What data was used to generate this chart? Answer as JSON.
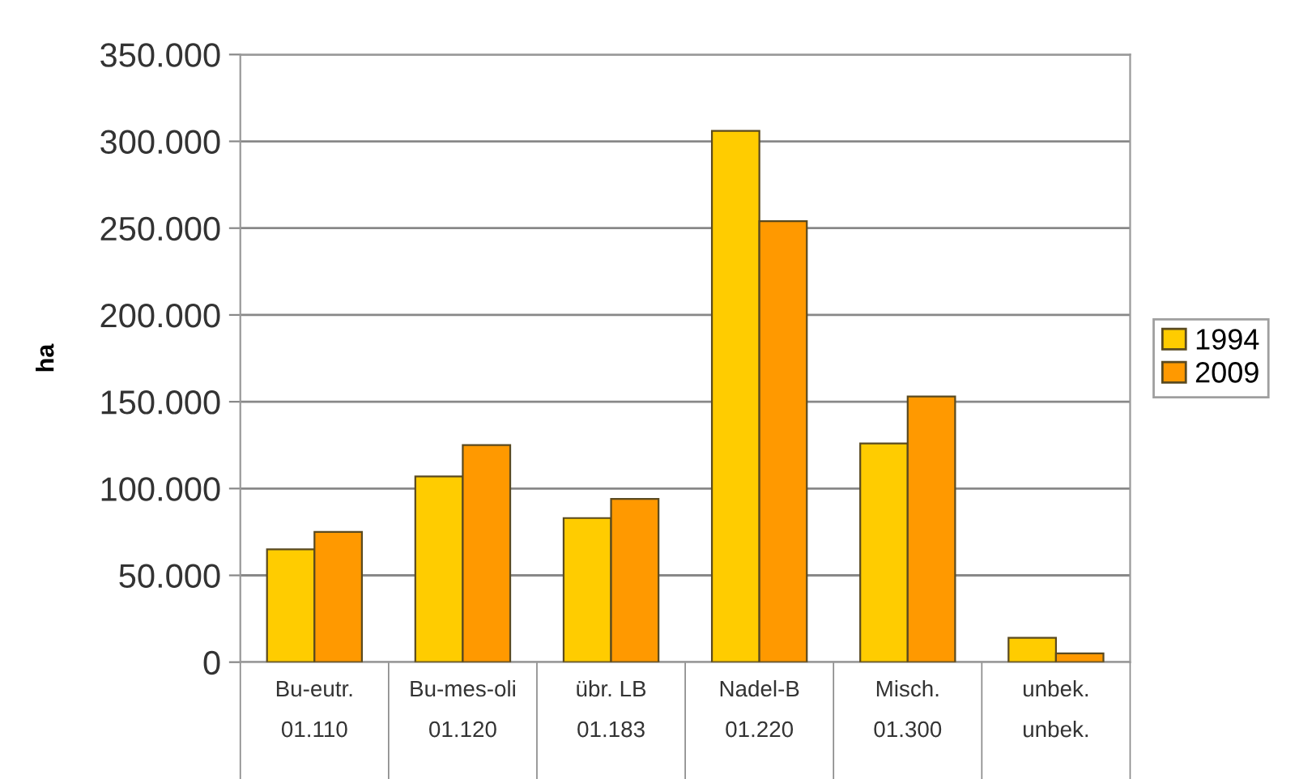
{
  "chart_data": {
    "type": "bar",
    "ylabel": "ha",
    "categories": [
      "Bu-eutr.\n01.110",
      "Bu-mes-oli\n01.120",
      "übr. LB\n01.183",
      "Nadel-B\n01.220",
      "Misch.\n01.300",
      "unbek.\nunbek."
    ],
    "series": [
      {
        "name": "1994",
        "color": "#ffcc00",
        "values": [
          65000,
          107000,
          83000,
          306000,
          126000,
          14000
        ]
      },
      {
        "name": "2009",
        "color": "#ff9900",
        "values": [
          75000,
          125000,
          94000,
          254000,
          153000,
          5000
        ]
      }
    ],
    "ylim": [
      0,
      350000
    ],
    "yticks": [
      {
        "value": 0,
        "label": "0"
      },
      {
        "value": 50000,
        "label": "50.000"
      },
      {
        "value": 100000,
        "label": "100.000"
      },
      {
        "value": 150000,
        "label": "150.000"
      },
      {
        "value": 200000,
        "label": "200.000"
      },
      {
        "value": 250000,
        "label": "250.000"
      },
      {
        "value": 300000,
        "label": "300.000"
      },
      {
        "value": 350000,
        "label": "350.000"
      }
    ],
    "grid": "y",
    "legend": "right"
  }
}
